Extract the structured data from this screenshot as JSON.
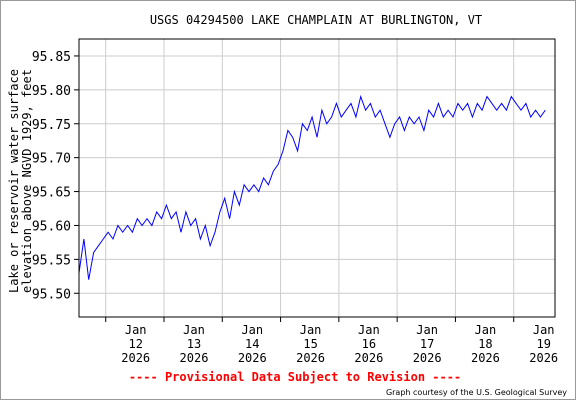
{
  "chart_data": {
    "type": "line",
    "title": "USGS 04294500 LAKE CHAMPLAIN AT BURLINGTON, VT",
    "ylabel_line1": "Lake or reservoir water surface",
    "ylabel_line2": "elevation above NGVD 1929, feet",
    "xlabel": "",
    "ylim": [
      95.465,
      95.875
    ],
    "xlim": [
      "2026-01-11T13:00",
      "2026-01-19T17:00"
    ],
    "y_ticks": [
      "95.50",
      "95.55",
      "95.60",
      "95.65",
      "95.70",
      "95.75",
      "95.80",
      "95.85"
    ],
    "y_tick_values": [
      95.5,
      95.55,
      95.6,
      95.65,
      95.7,
      95.75,
      95.8,
      95.85
    ],
    "x_ticks": [
      {
        "date": "2026-01-12",
        "label": [
          "Jan",
          "12",
          "2026"
        ]
      },
      {
        "date": "2026-01-13",
        "label": [
          "Jan",
          "13",
          "2026"
        ]
      },
      {
        "date": "2026-01-14",
        "label": [
          "Jan",
          "14",
          "2026"
        ]
      },
      {
        "date": "2026-01-15",
        "label": [
          "Jan",
          "15",
          "2026"
        ]
      },
      {
        "date": "2026-01-16",
        "label": [
          "Jan",
          "16",
          "2026"
        ]
      },
      {
        "date": "2026-01-17",
        "label": [
          "Jan",
          "17",
          "2026"
        ]
      },
      {
        "date": "2026-01-18",
        "label": [
          "Jan",
          "18",
          "2026"
        ]
      },
      {
        "date": "2026-01-19",
        "label": [
          "Jan",
          "19",
          "2026"
        ]
      }
    ],
    "grid": true,
    "series_color": "#0000ff",
    "series": [
      {
        "x": [
          "2026-01-11T13:00",
          "2026-01-11T15:00",
          "2026-01-11T17:00",
          "2026-01-11T19:00",
          "2026-01-11T21:00",
          "2026-01-11T23:00",
          "2026-01-12T01:00",
          "2026-01-12T03:00",
          "2026-01-12T05:00",
          "2026-01-12T07:00",
          "2026-01-12T09:00",
          "2026-01-12T11:00",
          "2026-01-12T13:00",
          "2026-01-12T15:00",
          "2026-01-12T17:00",
          "2026-01-12T19:00",
          "2026-01-12T21:00",
          "2026-01-12T23:00",
          "2026-01-13T01:00",
          "2026-01-13T03:00",
          "2026-01-13T05:00",
          "2026-01-13T07:00",
          "2026-01-13T09:00",
          "2026-01-13T11:00",
          "2026-01-13T13:00",
          "2026-01-13T15:00",
          "2026-01-13T17:00",
          "2026-01-13T19:00",
          "2026-01-13T21:00",
          "2026-01-13T23:00",
          "2026-01-14T01:00",
          "2026-01-14T03:00",
          "2026-01-14T05:00",
          "2026-01-14T07:00",
          "2026-01-14T09:00",
          "2026-01-14T11:00",
          "2026-01-14T13:00",
          "2026-01-14T15:00",
          "2026-01-14T17:00",
          "2026-01-14T19:00",
          "2026-01-14T21:00",
          "2026-01-14T23:00",
          "2026-01-15T01:00",
          "2026-01-15T03:00",
          "2026-01-15T05:00",
          "2026-01-15T07:00",
          "2026-01-15T09:00",
          "2026-01-15T11:00",
          "2026-01-15T13:00",
          "2026-01-15T15:00",
          "2026-01-15T17:00",
          "2026-01-15T19:00",
          "2026-01-15T21:00",
          "2026-01-15T23:00",
          "2026-01-16T01:00",
          "2026-01-16T03:00",
          "2026-01-16T05:00",
          "2026-01-16T07:00",
          "2026-01-16T09:00",
          "2026-01-16T11:00",
          "2026-01-16T13:00",
          "2026-01-16T15:00",
          "2026-01-16T17:00",
          "2026-01-16T19:00",
          "2026-01-16T21:00",
          "2026-01-16T23:00",
          "2026-01-17T01:00",
          "2026-01-17T03:00",
          "2026-01-17T05:00",
          "2026-01-17T07:00",
          "2026-01-17T09:00",
          "2026-01-17T11:00",
          "2026-01-17T13:00",
          "2026-01-17T15:00",
          "2026-01-17T17:00",
          "2026-01-17T19:00",
          "2026-01-17T21:00",
          "2026-01-17T23:00",
          "2026-01-18T01:00",
          "2026-01-18T03:00",
          "2026-01-18T05:00",
          "2026-01-18T07:00",
          "2026-01-18T09:00",
          "2026-01-18T11:00",
          "2026-01-18T13:00",
          "2026-01-18T15:00",
          "2026-01-18T17:00",
          "2026-01-18T19:00",
          "2026-01-18T21:00",
          "2026-01-18T23:00",
          "2026-01-19T01:00",
          "2026-01-19T03:00",
          "2026-01-19T05:00",
          "2026-01-19T07:00",
          "2026-01-19T09:00",
          "2026-01-19T11:00",
          "2026-01-19T13:00"
        ],
        "y": [
          95.53,
          95.58,
          95.52,
          95.56,
          95.57,
          95.58,
          95.59,
          95.58,
          95.6,
          95.59,
          95.6,
          95.59,
          95.61,
          95.6,
          95.61,
          95.6,
          95.62,
          95.61,
          95.63,
          95.61,
          95.62,
          95.59,
          95.62,
          95.6,
          95.61,
          95.58,
          95.6,
          95.57,
          95.59,
          95.62,
          95.64,
          95.61,
          95.65,
          95.63,
          95.66,
          95.65,
          95.66,
          95.65,
          95.67,
          95.66,
          95.68,
          95.69,
          95.71,
          95.74,
          95.73,
          95.71,
          95.75,
          95.74,
          95.76,
          95.73,
          95.77,
          95.75,
          95.76,
          95.78,
          95.76,
          95.77,
          95.78,
          95.76,
          95.79,
          95.77,
          95.78,
          95.76,
          95.77,
          95.75,
          95.73,
          95.75,
          95.76,
          95.74,
          95.76,
          95.75,
          95.76,
          95.74,
          95.77,
          95.76,
          95.78,
          95.76,
          95.77,
          95.76,
          95.78,
          95.77,
          95.78,
          95.76,
          95.78,
          95.77,
          95.79,
          95.78,
          95.77,
          95.78,
          95.77,
          95.79,
          95.78,
          95.77,
          95.78,
          95.76,
          95.77,
          95.76,
          95.77
        ]
      }
    ]
  },
  "footer": {
    "provisional": "---- Provisional Data Subject to Revision ----",
    "courtesy": "Graph courtesy of the U.S. Geological Survey"
  }
}
